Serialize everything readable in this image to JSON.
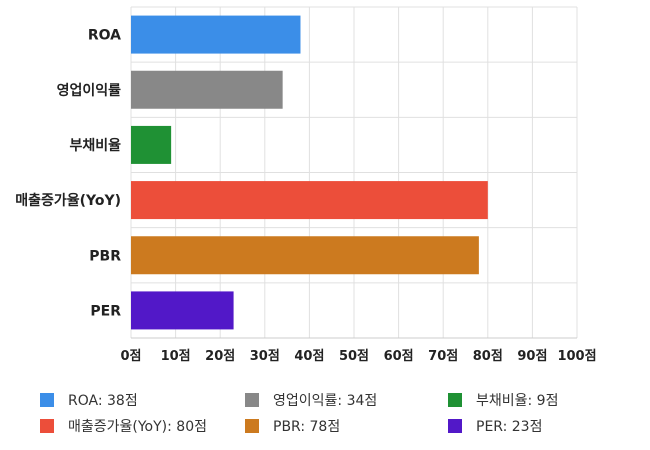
{
  "chart_data": {
    "type": "bar",
    "orientation": "horizontal",
    "categories": [
      "ROA",
      "영업이익률",
      "부채비율",
      "매출증가율(YoY)",
      "PBR",
      "PER"
    ],
    "values": [
      38,
      34,
      9,
      80,
      78,
      23
    ],
    "colors": [
      "#3b8ee8",
      "#888888",
      "#1f9134",
      "#ec4e3a",
      "#cc7a1f",
      "#5218c8"
    ],
    "xlim": [
      0,
      100
    ],
    "xticks": [
      0,
      10,
      20,
      30,
      40,
      50,
      60,
      70,
      80,
      90,
      100
    ],
    "tick_suffix": "점",
    "grid": true,
    "legend_position": "bottom",
    "legend": [
      {
        "label": "ROA: 38점",
        "color": "#3b8ee8"
      },
      {
        "label": "영업이익률: 34점",
        "color": "#888888"
      },
      {
        "label": "부채비율: 9점",
        "color": "#1f9134"
      },
      {
        "label": "매출증가율(YoY): 80점",
        "color": "#ec4e3a"
      },
      {
        "label": "PBR: 78점",
        "color": "#cc7a1f"
      },
      {
        "label": "PER: 23점",
        "color": "#5218c8"
      }
    ]
  }
}
